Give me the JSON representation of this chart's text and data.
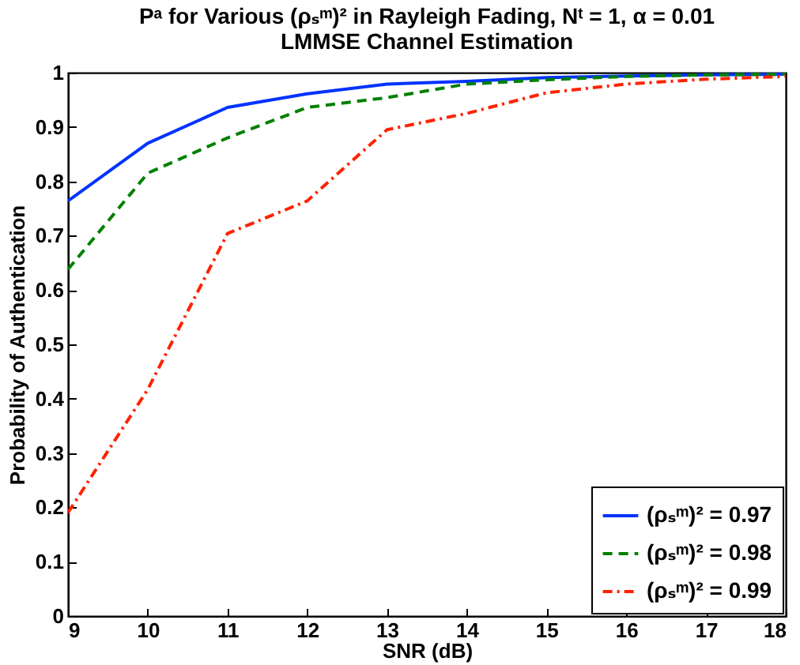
{
  "chart_data": {
    "type": "line",
    "title": "Pᵃ for Various (ρₛᵐ)² in Rayleigh Fading, Nᵗ = 1, α = 0.01",
    "subtitle": "LMMSE Channel Estimation",
    "xlabel": "SNR (dB)",
    "ylabel": "Probability of Authentication",
    "x": [
      9,
      10,
      11,
      12,
      13,
      14,
      15,
      16,
      17,
      18
    ],
    "series": [
      {
        "name": "(ρₛᵐ)² = 0.97",
        "color": "#0033ff",
        "line_style": "solid",
        "values": [
          0.764,
          0.87,
          0.936,
          0.961,
          0.979,
          0.984,
          0.991,
          0.994,
          0.996,
          0.997
        ]
      },
      {
        "name": "(ρₛᵐ)² = 0.98",
        "color": "#008000",
        "line_style": "dashed",
        "values": [
          0.638,
          0.815,
          0.88,
          0.936,
          0.954,
          0.979,
          0.987,
          0.993,
          0.996,
          0.997
        ]
      },
      {
        "name": "(ρₛᵐ)² = 0.99",
        "color": "#ff2200",
        "line_style": "dashdot",
        "values": [
          0.19,
          0.417,
          0.704,
          0.764,
          0.895,
          0.925,
          0.963,
          0.979,
          0.988,
          0.993
        ]
      }
    ],
    "xlim": [
      9,
      18
    ],
    "xticks": [
      9,
      10,
      11,
      12,
      13,
      14,
      15,
      16,
      17,
      18
    ],
    "ylim": [
      0,
      1
    ],
    "yticks": [
      0,
      0.1,
      0.2,
      0.3,
      0.4,
      0.5,
      0.6,
      0.7,
      0.8,
      0.9,
      1
    ],
    "grid": false,
    "legend": "bottom right",
    "marker": "none"
  }
}
